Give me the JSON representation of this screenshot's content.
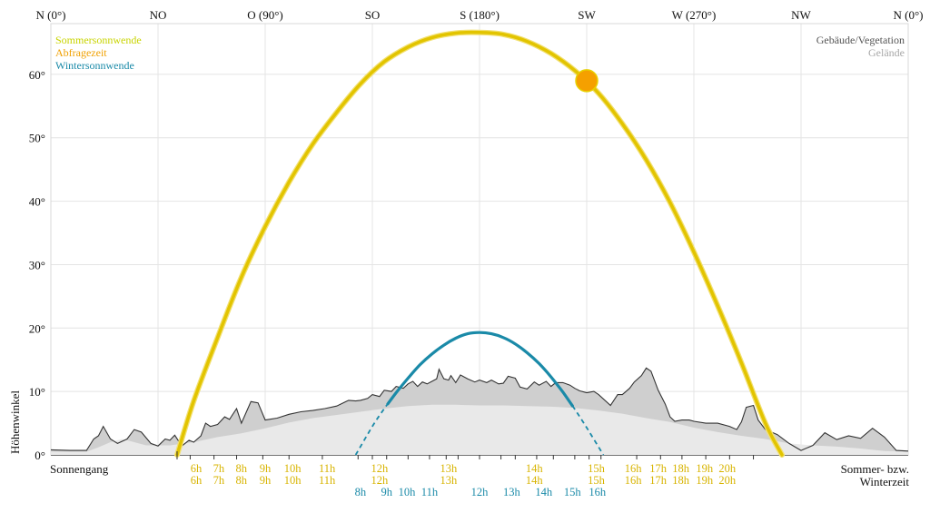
{
  "chart_data": {
    "type": "line",
    "title": "",
    "xlabel": "",
    "ylabel": "Höhenwinkel",
    "xlim": [
      0,
      360
    ],
    "ylim": [
      0,
      68
    ],
    "grid": true,
    "compass_labels": [
      {
        "label": "N (0°)",
        "azimuth": 0
      },
      {
        "label": "NO",
        "azimuth": 45
      },
      {
        "label": "O (90°)",
        "azimuth": 90
      },
      {
        "label": "SO",
        "azimuth": 135
      },
      {
        "label": "S (180°)",
        "azimuth": 180
      },
      {
        "label": "SW",
        "azimuth": 225
      },
      {
        "label": "W (270°)",
        "azimuth": 270
      },
      {
        "label": "NW",
        "azimuth": 315
      },
      {
        "label": "N (0°)",
        "azimuth": 360
      }
    ],
    "y_ticks": [
      {
        "label": "0°",
        "value": 0
      },
      {
        "label": "10°",
        "value": 10
      },
      {
        "label": "20°",
        "value": 20
      },
      {
        "label": "30°",
        "value": 30
      },
      {
        "label": "40°",
        "value": 40
      },
      {
        "label": "50°",
        "value": 50
      },
      {
        "label": "60°",
        "value": 60
      }
    ],
    "legend_left": [
      {
        "label": "Sommersonnwende",
        "color": "#c8d400"
      },
      {
        "label": "Abfragezeit",
        "color": "#f0a000"
      },
      {
        "label": "Wintersonnwende",
        "color": "#1a8aa8"
      }
    ],
    "legend_right": [
      {
        "label": "Gebäude/Vegetation",
        "color": "#555555"
      },
      {
        "label": "Gelände",
        "color": "#a8a8a8"
      }
    ],
    "series": [
      {
        "name": "Sommersonnwende",
        "color": "#e2c400",
        "azimuth": [
          53,
          60,
          70,
          80,
          90,
          100,
          110,
          120,
          130,
          140,
          150,
          160,
          170,
          180,
          190,
          200,
          210,
          220,
          230,
          240,
          250,
          260,
          270,
          280,
          290,
          300,
          307
        ],
        "elevation": [
          0,
          8.5,
          18.5,
          28,
          36,
          43,
          49,
          54,
          58.5,
          62,
          64.3,
          65.8,
          66.5,
          66.6,
          66.3,
          65.2,
          63.3,
          60.6,
          57,
          52.2,
          46.5,
          39.8,
          32,
          23.5,
          14.5,
          5,
          0
        ]
      },
      {
        "name": "Wintersonnwende",
        "color": "#1a8aa8",
        "azimuth": [
          128,
          135,
          140,
          145,
          150,
          155,
          160,
          165,
          170,
          175,
          180,
          185,
          190,
          195,
          200,
          205,
          210,
          215,
          220,
          225,
          232
        ],
        "elevation": [
          0,
          4.5,
          7.3,
          9.8,
          12.1,
          14.2,
          15.9,
          17.3,
          18.4,
          19.1,
          19.3,
          19.1,
          18.5,
          17.5,
          16.1,
          14.4,
          12.3,
          9.9,
          7.2,
          4.3,
          0
        ],
        "hidden_below_horizon": [
          [
            128,
            141.5
          ],
          [
            219,
            232
          ]
        ]
      }
    ],
    "query_position": {
      "label": "Abfragezeit",
      "azimuth": 225,
      "elevation": 59,
      "color": "#f5a000"
    },
    "horizon_terrain": {
      "name": "Gelände",
      "color": "#e9e9e9",
      "azimuth": [
        0,
        15,
        20,
        25,
        30,
        40,
        50,
        60,
        70,
        80,
        90,
        100,
        110,
        120,
        130,
        140,
        150,
        160,
        170,
        180,
        190,
        200,
        210,
        220,
        230,
        240,
        250,
        260,
        270,
        280,
        290,
        300,
        310,
        320,
        330,
        340,
        350,
        360
      ],
      "elevation": [
        0.5,
        0.5,
        1.2,
        2,
        2.5,
        1.5,
        1.5,
        2,
        2.8,
        3.4,
        4.2,
        5.1,
        5.8,
        6.3,
        6.8,
        7.3,
        7.7,
        7.9,
        7.9,
        7.8,
        7.8,
        7.7,
        7.6,
        7.4,
        7,
        6.5,
        5.8,
        5.2,
        4.3,
        3.6,
        3,
        2.5,
        1.8,
        1.5,
        1.3,
        1,
        0.6,
        0.5
      ]
    },
    "horizon_objects": {
      "name": "Gebäude/Vegetation",
      "color": "#cfcfcf",
      "azimuth": [
        0,
        8,
        15,
        18,
        20,
        22,
        25,
        28,
        32,
        35,
        38,
        42,
        45,
        48,
        50,
        52,
        55,
        58,
        60,
        63,
        65,
        67,
        70,
        73,
        75,
        78,
        80,
        84,
        87,
        90,
        95,
        100,
        105,
        110,
        115,
        120,
        125,
        128,
        130,
        133,
        135,
        138,
        140,
        143,
        145,
        148,
        150,
        152,
        154,
        156,
        158,
        160,
        162,
        163,
        165,
        167,
        168,
        170,
        172,
        175,
        178,
        180,
        183,
        185,
        188,
        190,
        192,
        195,
        197,
        200,
        203,
        205,
        208,
        210,
        212,
        215,
        218,
        220,
        222,
        225,
        228,
        230,
        235,
        238,
        240,
        243,
        245,
        248,
        250,
        252,
        255,
        258,
        260,
        262,
        265,
        268,
        270,
        275,
        280,
        285,
        288,
        290,
        292,
        295,
        297,
        300,
        305,
        310,
        315,
        320,
        325,
        330,
        335,
        340,
        345,
        350,
        355,
        360
      ],
      "elevation": [
        0.8,
        0.7,
        0.7,
        2.5,
        3,
        4.5,
        2.5,
        1.8,
        2.5,
        4,
        3.6,
        1.8,
        1.4,
        2.5,
        2.3,
        3.1,
        1.4,
        2.3,
        2,
        3,
        5,
        4.5,
        4.8,
        6,
        5.6,
        7.3,
        5,
        8.4,
        8.2,
        5.5,
        5.8,
        6.4,
        6.8,
        7,
        7.3,
        7.7,
        8.6,
        8.5,
        8.6,
        8.9,
        9.5,
        9.2,
        10.2,
        10,
        10.8,
        10.5,
        11.2,
        11.6,
        10.8,
        11.5,
        11.2,
        11.6,
        12,
        13.5,
        12,
        11.8,
        12.5,
        11.4,
        12.6,
        12,
        11.5,
        11.8,
        11.4,
        11.8,
        11.2,
        11.3,
        12.4,
        12.1,
        10.7,
        10.4,
        11.5,
        11,
        11.6,
        10.8,
        11.4,
        11.4,
        11,
        10.5,
        10.1,
        9.8,
        10,
        9.5,
        7.8,
        9.5,
        9.5,
        10.5,
        11.5,
        12.5,
        13.7,
        13.2,
        10.2,
        8,
        6,
        5.3,
        5.5,
        5.5,
        5.3,
        5,
        5,
        4.5,
        4,
        5.2,
        7.5,
        7.8,
        5.5,
        4,
        3.2,
        1.8,
        0.7,
        1.5,
        3.5,
        2.4,
        3,
        2.6,
        4.2,
        2.8,
        0.7,
        0.6
      ]
    },
    "hour_ticks_azimuth": [
      58.5,
      68.5,
      78,
      89,
      100,
      114,
      129,
      135,
      141,
      150,
      159,
      166,
      171,
      180,
      189,
      195,
      204,
      211,
      220,
      226,
      231,
      246,
      256,
      265,
      275,
      285,
      295
    ],
    "summer_hours": [
      {
        "label": "6h",
        "azimuth": 61
      },
      {
        "label": "7h",
        "azimuth": 70.5
      },
      {
        "label": "8h",
        "azimuth": 80
      },
      {
        "label": "9h",
        "azimuth": 90
      },
      {
        "label": "10h",
        "azimuth": 101.5
      },
      {
        "label": "11h",
        "azimuth": 116
      },
      {
        "label": "12h",
        "azimuth": 138
      },
      {
        "label": "13h",
        "azimuth": 167
      },
      {
        "label": "14h",
        "azimuth": 203
      },
      {
        "label": "15h",
        "azimuth": 229
      },
      {
        "label": "16h",
        "azimuth": 244.5
      },
      {
        "label": "17h",
        "azimuth": 255
      },
      {
        "label": "18h",
        "azimuth": 264.5
      },
      {
        "label": "19h",
        "azimuth": 274.5
      },
      {
        "label": "20h",
        "azimuth": 284
      }
    ],
    "winter_hours": [
      {
        "label": "8h",
        "azimuth": 130
      },
      {
        "label": "9h",
        "azimuth": 141
      },
      {
        "label": "10h",
        "azimuth": 149.5
      },
      {
        "label": "11h",
        "azimuth": 159
      },
      {
        "label": "12h",
        "azimuth": 180
      },
      {
        "label": "13h",
        "azimuth": 193.5
      },
      {
        "label": "14h",
        "azimuth": 207
      },
      {
        "label": "15h",
        "azimuth": 219
      },
      {
        "label": "16h",
        "azimuth": 229.5
      }
    ]
  },
  "footer": {
    "left_label": "Sonnengang",
    "right_label_line1": "Sommer- bzw.",
    "right_label_line2": "Winterzeit"
  }
}
